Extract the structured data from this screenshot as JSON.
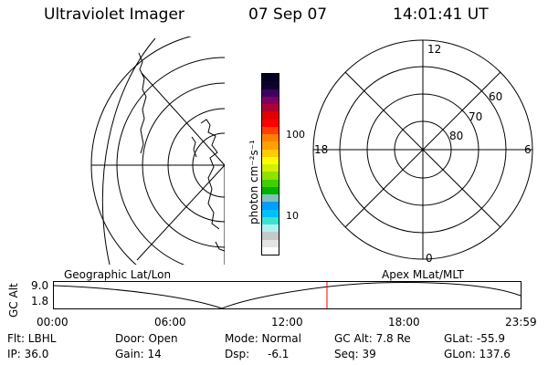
{
  "header": {
    "title": "Ultraviolet Imager",
    "date": "07 Sep 07",
    "time": "14:01:41 UT"
  },
  "colorbar": {
    "unit_label": "photon cm⁻²s⁻¹",
    "tick_labels": [
      "100",
      "10"
    ],
    "colors": [
      "#ffffff",
      "#e4e4e4",
      "#c8c8c8",
      "#b0f0f0",
      "#40e0d0",
      "#00c0ff",
      "#00a0ff",
      "#80c0c0",
      "#00b000",
      "#40d000",
      "#90e000",
      "#d0f000",
      "#ffff00",
      "#ffcc00",
      "#ffa000",
      "#ff8000",
      "#ff4000",
      "#ff0000",
      "#e00000",
      "#b00030",
      "#800060",
      "#400060",
      "#100030",
      "#000020"
    ]
  },
  "left_map": {
    "label": "Geographic Lat/Lon"
  },
  "right_polar": {
    "label": "Apex MLat/MLT",
    "mlt_labels": {
      "top": "12",
      "left": "18",
      "right": "6",
      "bottom": "0"
    },
    "lat_labels": [
      "60",
      "70",
      "80"
    ]
  },
  "timeline": {
    "axis_label": "GC Alt",
    "y_labels": [
      "9.0",
      "1.8"
    ],
    "x_labels": [
      "00:00",
      "06:00",
      "12:00",
      "18:00",
      "23:59"
    ],
    "marker_color": "#ff0000"
  },
  "status": {
    "col1": [
      "Flt: LBHL",
      "IP: 36.0"
    ],
    "col2": [
      "Door: Open",
      "Gain: 14"
    ],
    "col3_a": [
      "Mode: Normal",
      "Dsp:"
    ],
    "dsp_value": "-6.1",
    "col4": [
      "GC Alt: 7.8 Re",
      "Seq: 39"
    ],
    "col5": [
      "GLat: -55.9",
      "GLon: 137.6"
    ]
  }
}
